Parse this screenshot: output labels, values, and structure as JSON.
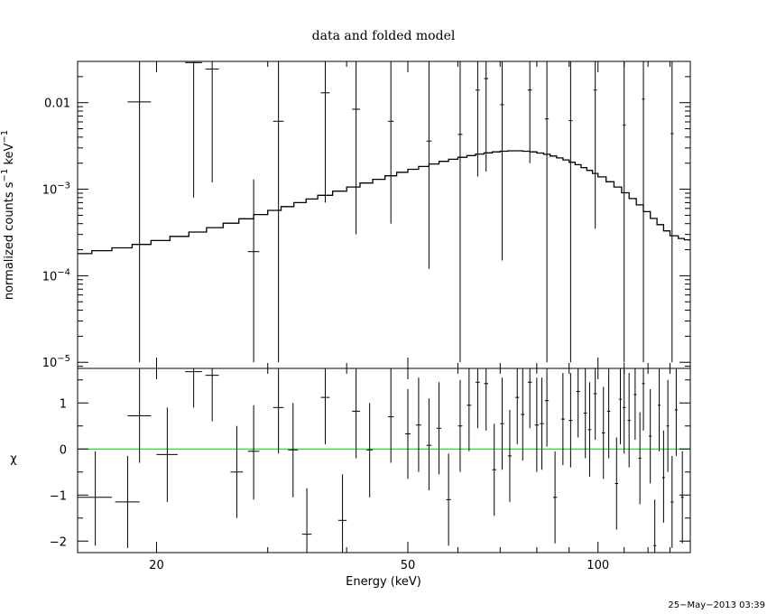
{
  "chart_data": [
    {
      "type": "scatter",
      "panel": "top",
      "title": "data and folded model",
      "xlabel": "Energy (keV)",
      "ylabel_parts": [
        "normalized counts s",
        "−1",
        " keV",
        "−1"
      ],
      "xscale": "log",
      "yscale": "log",
      "xlim": [
        15,
        140
      ],
      "ylim": [
        8.5e-06,
        0.03
      ],
      "ytick_labels": [
        {
          "value": 0.01,
          "mant": "0.01",
          "exp": ""
        },
        {
          "value": 0.001,
          "mant": "10",
          "exp": "−3"
        },
        {
          "value": 0.0001,
          "mant": "10",
          "exp": "−4"
        },
        {
          "value": 1e-05,
          "mant": "10",
          "exp": "−5"
        }
      ],
      "series": [
        {
          "role": "data",
          "points": [
            [
              18.8,
              0.0102,
              18.0,
              19.6,
              1e-05,
              0.042
            ],
            [
              22.9,
              0.029,
              22.2,
              23.6,
              0.0008,
              0.045
            ],
            [
              24.5,
              0.0245,
              23.9,
              25.1,
              0.0012,
              0.045
            ],
            [
              28.5,
              0.00019,
              27.9,
              29.1,
              1e-05,
              0.0013
            ],
            [
              31.2,
              0.0061,
              30.6,
              31.8,
              1e-05,
              0.031
            ],
            [
              37.0,
              0.013,
              36.4,
              37.6,
              0.0007,
              0.045
            ],
            [
              41.4,
              0.0084,
              40.8,
              42.0,
              0.0003,
              0.045
            ],
            [
              47.0,
              0.0061,
              46.5,
              47.5,
              0.0004,
              0.045
            ],
            [
              54.0,
              0.0036,
              53.5,
              54.5,
              0.00012,
              0.045
            ],
            [
              60.5,
              0.0043,
              60.0,
              61.0,
              1e-05,
              0.045
            ],
            [
              64.5,
              0.014,
              64.0,
              65.0,
              0.0014,
              0.045
            ],
            [
              66.5,
              0.019,
              66.0,
              67.0,
              0.0016,
              0.045
            ],
            [
              70.5,
              0.0095,
              70.0,
              71.0,
              0.00015,
              0.045
            ],
            [
              78.0,
              0.014,
              77.4,
              78.6,
              0.002,
              0.045
            ],
            [
              83.0,
              0.0065,
              82.4,
              83.6,
              1e-05,
              0.045
            ],
            [
              90.5,
              0.0062,
              89.9,
              91.1,
              1e-05,
              0.045
            ],
            [
              99.0,
              0.014,
              98.4,
              99.6,
              0.00035,
              0.045
            ],
            [
              110.0,
              0.0055,
              109.4,
              110.6,
              1e-05,
              0.045
            ],
            [
              118.0,
              0.011,
              117.4,
              118.6,
              1e-05,
              0.045
            ],
            [
              131.0,
              0.0044,
              130.3,
              131.7,
              1e-05,
              0.045
            ]
          ]
        },
        {
          "role": "model",
          "points": [
            [
              15.0,
              0.00018
            ],
            [
              15.8,
              0.000195
            ],
            [
              17.0,
              0.00021
            ],
            [
              18.3,
              0.00023
            ],
            [
              19.6,
              0.000255
            ],
            [
              21.0,
              0.000285
            ],
            [
              22.5,
              0.00032
            ],
            [
              24.0,
              0.00036
            ],
            [
              25.5,
              0.000405
            ],
            [
              27.0,
              0.000455
            ],
            [
              28.5,
              0.00051
            ],
            [
              30.0,
              0.00057
            ],
            [
              31.5,
              0.00063
            ],
            [
              33.0,
              0.0007
            ],
            [
              34.5,
              0.00077
            ],
            [
              36.0,
              0.00085
            ],
            [
              38.0,
              0.00095
            ],
            [
              40.0,
              0.00106
            ],
            [
              42.0,
              0.00118
            ],
            [
              44.0,
              0.0013
            ],
            [
              46.0,
              0.00143
            ],
            [
              48.0,
              0.00157
            ],
            [
              50.0,
              0.0017
            ],
            [
              52.0,
              0.00183
            ],
            [
              54.0,
              0.00196
            ],
            [
              56.0,
              0.0021
            ],
            [
              58.0,
              0.00222
            ],
            [
              60.0,
              0.00234
            ],
            [
              62.0,
              0.00245
            ],
            [
              64.0,
              0.00255
            ],
            [
              66.0,
              0.00263
            ],
            [
              68.0,
              0.0027
            ],
            [
              70.0,
              0.00275
            ],
            [
              72.0,
              0.00278
            ],
            [
              74.0,
              0.00278
            ],
            [
              76.0,
              0.00275
            ],
            [
              78.0,
              0.0027
            ],
            [
              80.0,
              0.00262
            ],
            [
              82.0,
              0.00253
            ],
            [
              84.0,
              0.00242
            ],
            [
              86.0,
              0.0023
            ],
            [
              88.0,
              0.00218
            ],
            [
              90.0,
              0.00205
            ],
            [
              92.0,
              0.00192
            ],
            [
              94.0,
              0.00178
            ],
            [
              96.0,
              0.00165
            ],
            [
              98.0,
              0.00152
            ],
            [
              100.0,
              0.00139
            ],
            [
              103.0,
              0.00122
            ],
            [
              106.0,
              0.00106
            ],
            [
              109.0,
              0.00091
            ],
            [
              112.0,
              0.00078
            ],
            [
              115.0,
              0.00066
            ],
            [
              118.0,
              0.00055
            ],
            [
              121.0,
              0.00046
            ],
            [
              124.0,
              0.00039
            ],
            [
              127.0,
              0.00033
            ],
            [
              130.0,
              0.00029
            ],
            [
              134.0,
              0.00027
            ],
            [
              137.0,
              0.00026
            ],
            [
              140.0,
              0.00025
            ]
          ]
        }
      ]
    },
    {
      "type": "scatter",
      "panel": "bottom",
      "xlabel": "Energy (keV)",
      "ylabel": "χ",
      "xscale": "log",
      "xlim": [
        15,
        140
      ],
      "ylim": [
        -2.25,
        1.75
      ],
      "xtick_labels": [
        {
          "value": 20,
          "label": "20"
        },
        {
          "value": 50,
          "label": "50"
        },
        {
          "value": 100,
          "label": "100"
        }
      ],
      "ytick_labels": [
        {
          "value": 1,
          "label": "1"
        },
        {
          "value": 0,
          "label": "0"
        },
        {
          "value": -1,
          "label": "−1"
        },
        {
          "value": -2,
          "label": "−2"
        }
      ],
      "reference_line": {
        "y": 0,
        "color": "#00cc00"
      },
      "series": [
        {
          "role": "residuals",
          "points": [
            [
              16.0,
              -1.05,
              15.0,
              17.0,
              -2.1,
              -0.05
            ],
            [
              18.0,
              -1.15,
              17.2,
              18.8,
              -2.15,
              -0.15
            ],
            [
              18.8,
              0.72,
              18.0,
              19.6,
              -0.3,
              1.75
            ],
            [
              20.8,
              -0.12,
              20.0,
              21.6,
              -1.15,
              0.9
            ],
            [
              22.9,
              1.68,
              22.2,
              23.6,
              0.9,
              1.75
            ],
            [
              24.5,
              1.6,
              23.9,
              25.1,
              0.6,
              1.75
            ],
            [
              26.8,
              -0.5,
              26.2,
              27.4,
              -1.5,
              0.5
            ],
            [
              28.5,
              -0.05,
              27.9,
              29.1,
              -1.1,
              0.95
            ],
            [
              31.2,
              0.9,
              30.6,
              31.8,
              -0.1,
              1.75
            ],
            [
              32.9,
              -0.02,
              32.3,
              33.5,
              -1.05,
              1.0
            ],
            [
              34.6,
              -1.85,
              34.0,
              35.2,
              -2.25,
              -0.85
            ],
            [
              37.0,
              1.12,
              36.4,
              37.6,
              0.1,
              1.75
            ],
            [
              39.4,
              -1.55,
              38.8,
              40.0,
              -2.25,
              -0.55
            ],
            [
              41.4,
              0.82,
              40.8,
              42.0,
              -0.2,
              1.75
            ],
            [
              43.5,
              -0.02,
              43.0,
              44.0,
              -1.05,
              1.0
            ],
            [
              47.0,
              0.7,
              46.5,
              47.5,
              -0.3,
              1.75
            ],
            [
              50.0,
              0.33,
              49.5,
              50.5,
              -0.65,
              1.3
            ],
            [
              52.0,
              0.52,
              51.5,
              52.5,
              -0.5,
              1.55
            ],
            [
              54.0,
              0.08,
              53.5,
              54.5,
              -0.9,
              1.1
            ],
            [
              56.0,
              0.45,
              55.5,
              56.5,
              -0.55,
              1.45
            ],
            [
              58.0,
              -1.1,
              57.5,
              58.5,
              -2.1,
              -0.1
            ],
            [
              60.5,
              0.5,
              60.0,
              61.0,
              -0.5,
              1.5
            ],
            [
              62.5,
              0.95,
              62.0,
              63.0,
              -0.05,
              1.75
            ],
            [
              64.5,
              1.45,
              64.0,
              65.0,
              0.45,
              1.75
            ],
            [
              66.5,
              1.42,
              66.0,
              67.0,
              0.4,
              1.75
            ],
            [
              68.5,
              -0.45,
              68.0,
              69.0,
              -1.45,
              0.55
            ],
            [
              70.5,
              0.55,
              70.0,
              71.0,
              -0.45,
              1.55
            ],
            [
              72.5,
              -0.15,
              72.0,
              73.0,
              -1.15,
              0.85
            ],
            [
              74.5,
              1.12,
              74.0,
              75.0,
              0.1,
              1.75
            ],
            [
              76.0,
              0.75,
              75.5,
              76.5,
              -0.25,
              1.75
            ],
            [
              78.0,
              1.45,
              77.4,
              78.6,
              0.45,
              1.75
            ],
            [
              80.0,
              0.52,
              79.4,
              80.6,
              -0.5,
              1.55
            ],
            [
              81.5,
              0.55,
              80.9,
              82.1,
              -0.45,
              1.55
            ],
            [
              83.0,
              1.05,
              82.4,
              83.6,
              0.05,
              1.75
            ],
            [
              85.5,
              -1.05,
              84.9,
              86.1,
              -2.05,
              -0.05
            ],
            [
              88.0,
              0.65,
              87.4,
              88.6,
              -0.35,
              1.65
            ],
            [
              90.5,
              0.62,
              89.9,
              91.1,
              -0.4,
              1.65
            ],
            [
              93.0,
              1.25,
              92.4,
              93.6,
              0.25,
              1.75
            ],
            [
              95.5,
              0.78,
              94.9,
              96.1,
              -0.2,
              1.75
            ],
            [
              97.0,
              0.42,
              96.4,
              97.6,
              -0.6,
              1.45
            ],
            [
              99.0,
              1.2,
              98.4,
              99.6,
              0.2,
              1.75
            ],
            [
              102.0,
              0.35,
              101.4,
              102.6,
              -0.65,
              1.35
            ],
            [
              104.0,
              0.82,
              103.4,
              104.6,
              -0.2,
              1.75
            ],
            [
              107.0,
              -0.75,
              106.4,
              107.6,
              -1.75,
              0.25
            ],
            [
              108.5,
              1.08,
              107.9,
              109.1,
              0.1,
              1.75
            ],
            [
              110.0,
              0.9,
              109.4,
              110.6,
              -0.1,
              1.75
            ],
            [
              112.0,
              0.62,
              111.4,
              112.6,
              -0.4,
              1.65
            ],
            [
              114.5,
              1.18,
              113.9,
              115.1,
              0.2,
              1.75
            ],
            [
              116.5,
              -0.2,
              115.9,
              117.1,
              -1.2,
              0.8
            ],
            [
              118.0,
              1.42,
              117.4,
              118.6,
              0.4,
              1.75
            ],
            [
              121.0,
              0.28,
              120.4,
              121.6,
              -0.75,
              1.3
            ],
            [
              123.0,
              -2.1,
              122.4,
              123.6,
              -2.25,
              -1.1
            ],
            [
              125.0,
              0.95,
              124.4,
              125.6,
              -0.05,
              1.75
            ],
            [
              127.0,
              -0.62,
              126.4,
              127.6,
              -1.6,
              0.4
            ],
            [
              129.0,
              0.5,
              128.4,
              129.6,
              -0.5,
              1.5
            ],
            [
              131.0,
              -1.15,
              130.3,
              131.7,
              -2.15,
              -0.15
            ],
            [
              133.0,
              0.85,
              132.3,
              133.7,
              -0.15,
              1.75
            ],
            [
              136.0,
              -1.05,
              135.3,
              136.7,
              -2.05,
              -0.05
            ]
          ]
        }
      ]
    }
  ],
  "timestamp": "25−May−2013 03:39"
}
